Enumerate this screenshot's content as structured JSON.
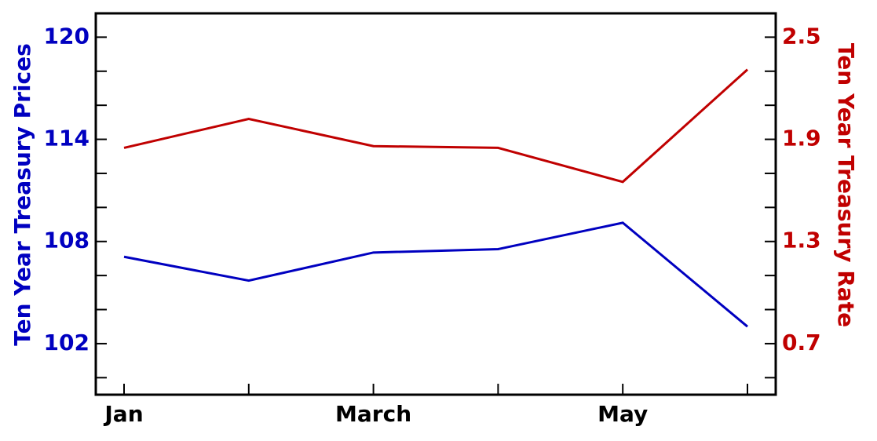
{
  "chart_data": {
    "type": "line",
    "categories": [
      "Jan",
      null,
      "March",
      null,
      "May",
      null
    ],
    "ylabel": "Ten Year Treasury Prices",
    "y2label": "Ten Year Treasury Rate",
    "ylim": [
      99,
      121.4
    ],
    "yticks": [
      102,
      108,
      114,
      120
    ],
    "yminorticks": [
      100,
      104,
      106,
      110,
      112,
      116,
      118
    ],
    "y2lim": [
      0.4,
      2.64
    ],
    "y2ticks": [
      0.7,
      1.3,
      1.9,
      2.5
    ],
    "y2minorticks": [
      0.5,
      0.9,
      1.1,
      1.5,
      1.7,
      2.1,
      2.3
    ],
    "ycolor": "#0000c0",
    "y2color": "#c00000",
    "series": [
      {
        "name": "Ten Year Treasury Prices",
        "color": "#0000c0",
        "values": [
          107.1,
          105.7,
          107.35,
          107.55,
          109.1,
          103.0
        ]
      },
      {
        "name": "Ten Year Treasury Rate",
        "color": "#c00000",
        "axis": "y2",
        "values": [
          1.85,
          2.02,
          1.86,
          1.85,
          1.65,
          2.31
        ]
      }
    ]
  }
}
